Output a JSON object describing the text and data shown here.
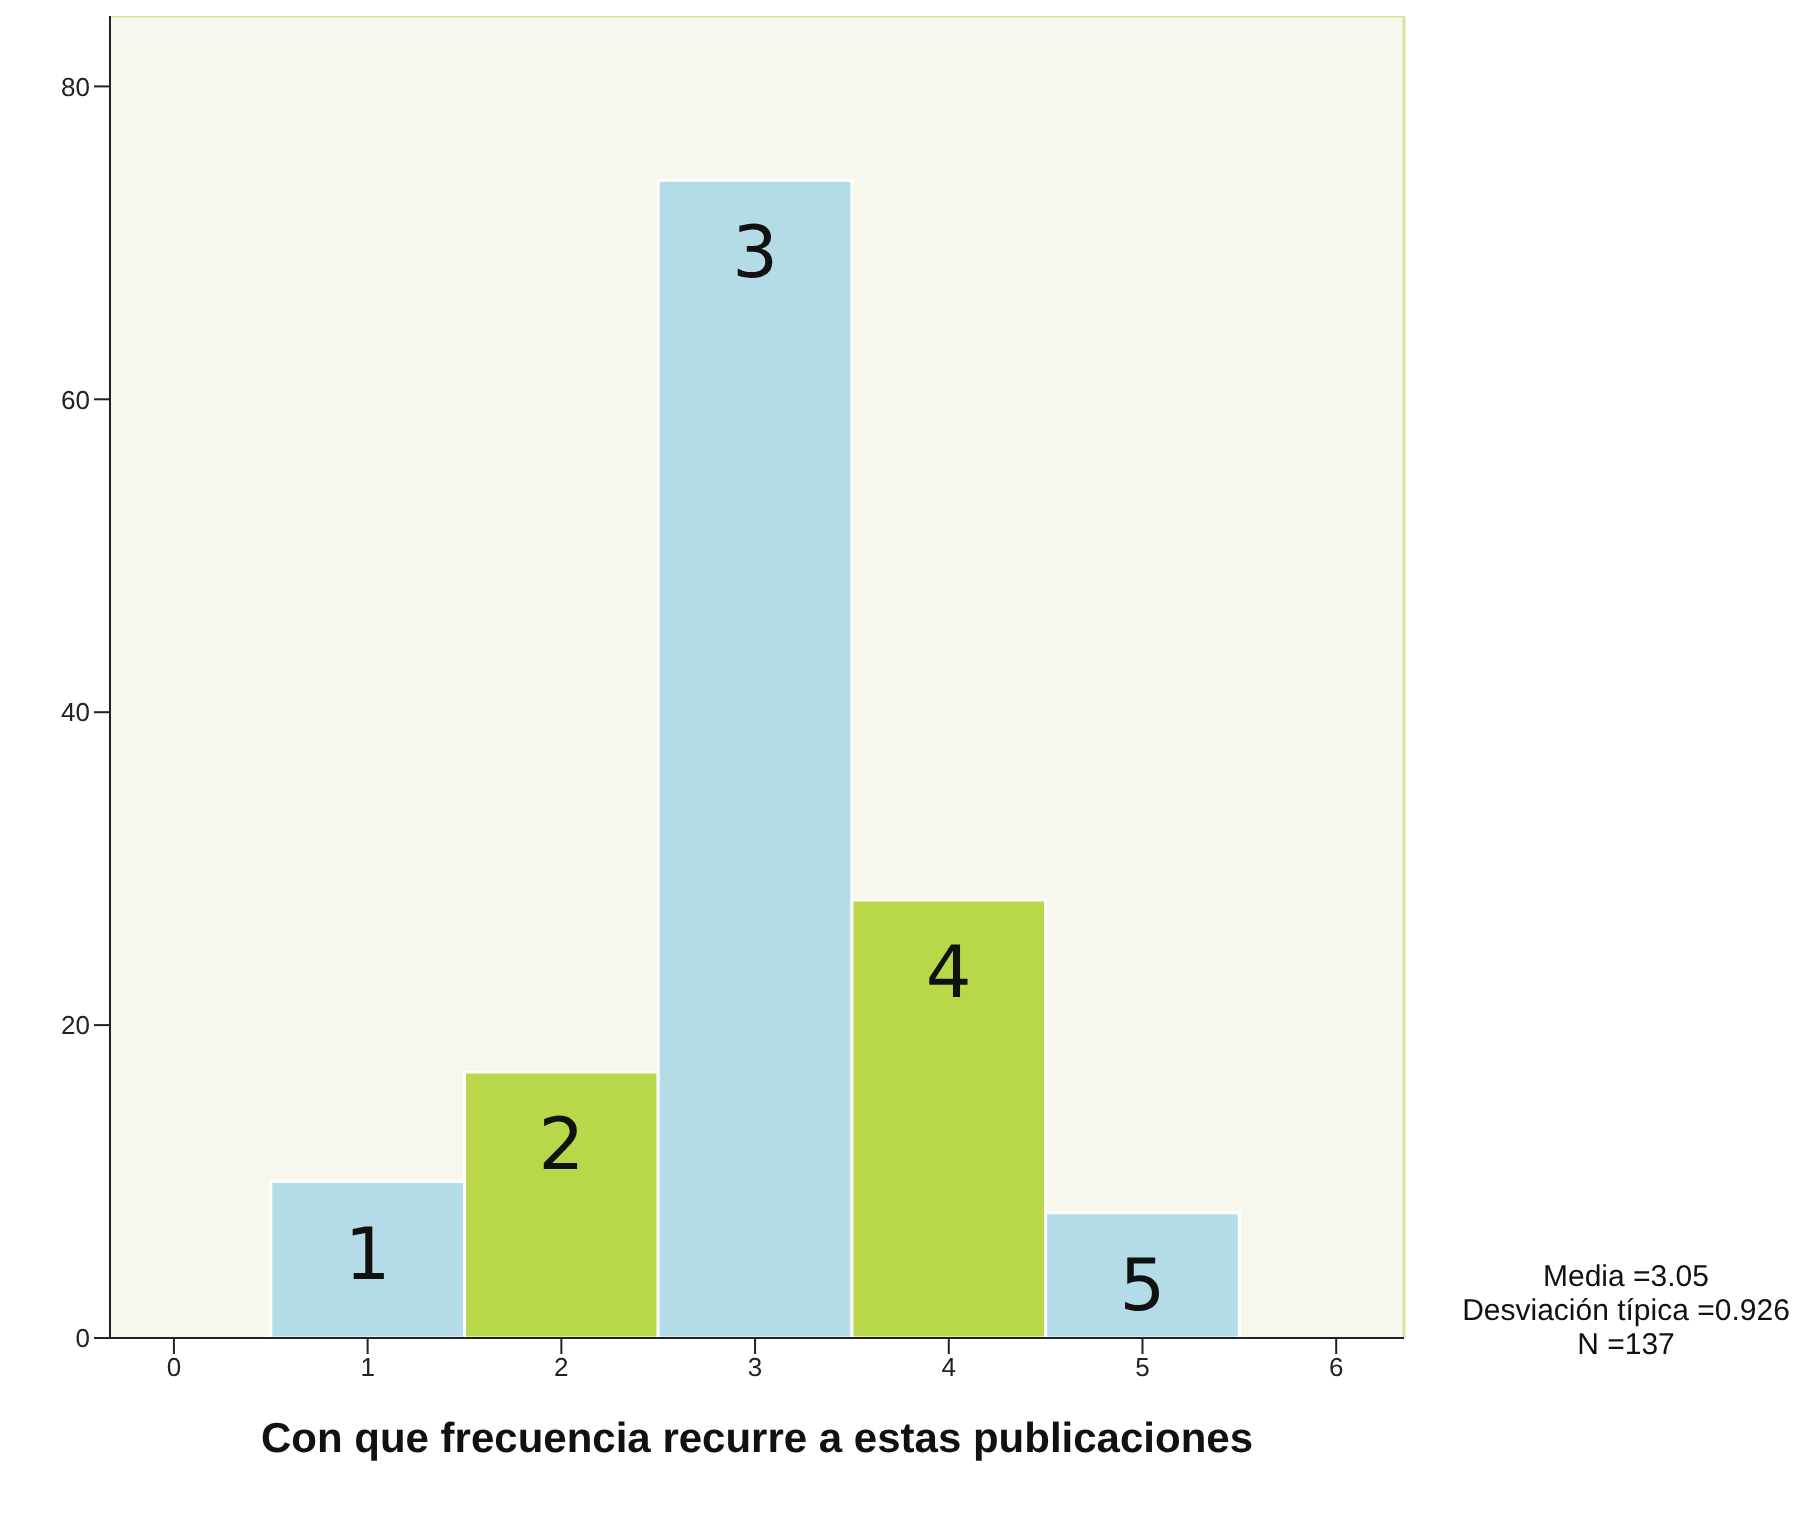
{
  "chart_data": {
    "type": "histogram",
    "xlabel": "Con que frecuencia recurre a estas publicaciones",
    "bins": [
      0.5,
      1.5,
      2.5,
      3.5,
      4.5,
      5.5
    ],
    "values": [
      10,
      17,
      74,
      28,
      8
    ],
    "colors": [
      "#b3dce6",
      "#b8d84a",
      "#b3dce6",
      "#b8d84a",
      "#b3dce6"
    ],
    "xlim": [
      -0.33,
      6.35
    ],
    "xticks": [
      0,
      1,
      2,
      3,
      4,
      5,
      6
    ],
    "ylim": [
      0,
      84.5
    ],
    "yticks": [
      0,
      20,
      40,
      60,
      80
    ],
    "grid": false,
    "annotations": [
      "1",
      "2",
      "3",
      "4",
      "5",
      "Media =3.05",
      "Desviación típica =0.926",
      "N =137"
    ]
  }
}
